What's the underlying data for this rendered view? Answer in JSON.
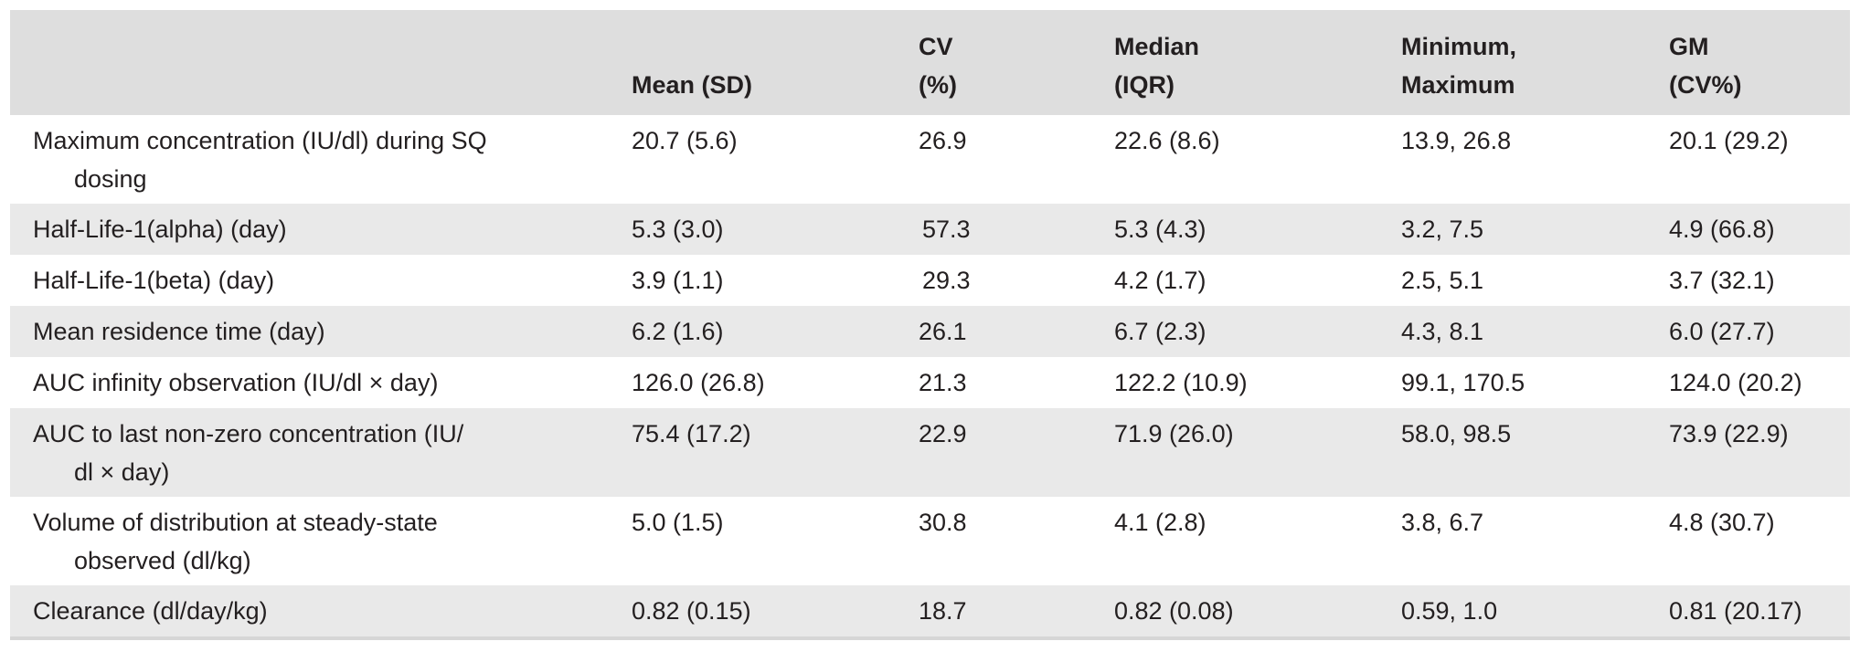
{
  "table": {
    "headers": [
      {
        "line1": "",
        "line2": ""
      },
      {
        "line1": "",
        "line2": "Mean (SD)"
      },
      {
        "line1": "CV",
        "line2": "(%)"
      },
      {
        "line1": "Median",
        "line2": "(IQR)"
      },
      {
        "line1": "Minimum,",
        "line2": "Maximum"
      },
      {
        "line1": "GM",
        "line2": "(CV%)"
      }
    ],
    "rows": [
      {
        "label1": "Maximum concentration (IU/dl) during SQ",
        "label2": "dosing",
        "mean_sd": "20.7 (5.6)",
        "cv": "26.9",
        "median_iqr": "22.6 (8.6)",
        "min_max": "13.9, 26.8",
        "gm_cv": "20.1 (29.2)"
      },
      {
        "label1": "Half-Life-1(alpha) (day)",
        "label2": "",
        "mean_sd": "5.3 (3.0)",
        "cv": "57.3",
        "median_iqr": "5.3 (4.3)",
        "min_max": "3.2, 7.5",
        "gm_cv": "4.9 (66.8)"
      },
      {
        "label1": "Half-Life-1(beta) (day)",
        "label2": "",
        "mean_sd": "3.9 (1.1)",
        "cv": "29.3",
        "median_iqr": "4.2 (1.7)",
        "min_max": "2.5, 5.1",
        "gm_cv": "3.7 (32.1)"
      },
      {
        "label1": "Mean residence time (day)",
        "label2": "",
        "mean_sd": "6.2 (1.6)",
        "cv": "26.1",
        "median_iqr": "6.7 (2.3)",
        "min_max": "4.3, 8.1",
        "gm_cv": "6.0 (27.7)"
      },
      {
        "label1": "AUC infinity observation (IU/dl × day)",
        "label2": "",
        "mean_sd": "126.0 (26.8)",
        "cv": "21.3",
        "median_iqr": "122.2 (10.9)",
        "min_max": "99.1, 170.5",
        "gm_cv": "124.0 (20.2)"
      },
      {
        "label1": "AUC to last non-zero concentration (IU/",
        "label2": "dl × day)",
        "mean_sd": "75.4 (17.2)",
        "cv": "22.9",
        "median_iqr": "71.9 (26.0)",
        "min_max": "58.0, 98.5",
        "gm_cv": "73.9 (22.9)"
      },
      {
        "label1": "Volume of distribution at steady-state",
        "label2": "observed (dl/kg)",
        "mean_sd": "5.0 (1.5)",
        "cv": "30.8",
        "median_iqr": "4.1 (2.8)",
        "min_max": "3.8, 6.7",
        "gm_cv": "4.8 (30.7)"
      },
      {
        "label1": "Clearance (dl/day/kg)",
        "label2": "",
        "mean_sd": "0.82 (0.15)",
        "cv": "18.7",
        "median_iqr": "0.82 (0.08)",
        "min_max": "0.59, 1.0",
        "gm_cv": "0.81 (20.17)"
      }
    ]
  }
}
